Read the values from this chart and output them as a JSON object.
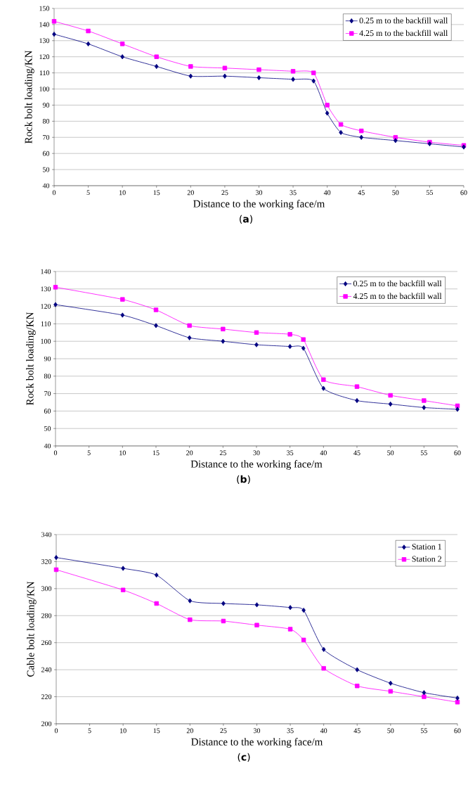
{
  "chart_data": [
    {
      "type": "line",
      "xlabel": "Distance to the working face/m",
      "ylabel": "Rock bolt loading/KN",
      "annotations": [
        "(**a**)"
      ],
      "xlim": [
        0,
        60
      ],
      "ylim": [
        40,
        150
      ],
      "xticks": [
        0,
        5,
        10,
        15,
        20,
        25,
        30,
        35,
        40,
        45,
        50,
        55,
        60
      ],
      "yticks": [
        40,
        50,
        60,
        70,
        80,
        90,
        100,
        110,
        120,
        130,
        140,
        150
      ],
      "grid": "y",
      "legend": "top right",
      "series": [
        {
          "name": "0.25 m to the backfill wall",
          "color": "#000080",
          "marker": "diamond",
          "x": [
            0,
            5,
            10,
            15,
            20,
            25,
            30,
            35,
            38,
            40,
            42,
            45,
            50,
            55,
            60
          ],
          "values": [
            134,
            128,
            120,
            114,
            108,
            108,
            107,
            106,
            105,
            85,
            73,
            70,
            68,
            66,
            64
          ]
        },
        {
          "name": "4.25 m to the backfill wall",
          "color": "#ff00ff",
          "marker": "square",
          "x": [
            0,
            5,
            10,
            15,
            20,
            25,
            30,
            35,
            38,
            40,
            42,
            45,
            50,
            55,
            60
          ],
          "values": [
            142,
            136,
            128,
            120,
            114,
            113,
            112,
            111,
            110,
            90,
            78,
            74,
            70,
            67,
            65
          ]
        }
      ]
    },
    {
      "type": "line",
      "xlabel": "Distance to the working face/m",
      "ylabel": "Rock bolt loading/KN",
      "annotations": [
        "(**b**)"
      ],
      "xlim": [
        0,
        60
      ],
      "ylim": [
        40,
        140
      ],
      "xticks": [
        0,
        5,
        10,
        15,
        20,
        25,
        30,
        35,
        40,
        45,
        50,
        55,
        60
      ],
      "yticks": [
        40,
        50,
        60,
        70,
        80,
        90,
        100,
        110,
        120,
        130,
        140
      ],
      "grid": "y",
      "legend": "top right",
      "series": [
        {
          "name": "0.25 m to the backfill wall",
          "color": "#000080",
          "marker": "diamond",
          "x": [
            0,
            10,
            15,
            20,
            25,
            30,
            35,
            37,
            40,
            45,
            50,
            55,
            60
          ],
          "values": [
            121,
            115,
            109,
            102,
            100,
            98,
            97,
            96,
            73,
            66,
            64,
            62,
            61
          ]
        },
        {
          "name": "4.25 m to the backfill wall",
          "color": "#ff00ff",
          "marker": "square",
          "x": [
            0,
            10,
            15,
            20,
            25,
            30,
            35,
            37,
            40,
            45,
            50,
            55,
            60
          ],
          "values": [
            131,
            124,
            118,
            109,
            107,
            105,
            104,
            101,
            78,
            74,
            69,
            66,
            63
          ]
        }
      ]
    },
    {
      "type": "line",
      "xlabel": "Distance to the working face/m",
      "ylabel": "Cable bolt loading/KN",
      "annotations": [
        "(**c**)"
      ],
      "xlim": [
        0,
        60
      ],
      "ylim": [
        200,
        340
      ],
      "xticks": [
        0,
        5,
        10,
        15,
        20,
        25,
        30,
        35,
        40,
        45,
        50,
        55,
        60
      ],
      "yticks": [
        200,
        220,
        240,
        260,
        280,
        300,
        320,
        340
      ],
      "grid": "y",
      "legend": "top right",
      "series": [
        {
          "name": "Station 1",
          "color": "#000080",
          "marker": "diamond",
          "x": [
            0,
            10,
            15,
            20,
            25,
            30,
            35,
            37,
            40,
            45,
            50,
            55,
            60
          ],
          "values": [
            323,
            315,
            310,
            291,
            289,
            288,
            286,
            284,
            255,
            240,
            230,
            223,
            219
          ]
        },
        {
          "name": "Station 2",
          "color": "#ff00ff",
          "marker": "square",
          "x": [
            0,
            10,
            15,
            20,
            25,
            30,
            35,
            37,
            40,
            45,
            50,
            55,
            60
          ],
          "values": [
            314,
            299,
            289,
            277,
            276,
            273,
            270,
            262,
            241,
            228,
            224,
            220,
            216
          ]
        }
      ]
    }
  ]
}
